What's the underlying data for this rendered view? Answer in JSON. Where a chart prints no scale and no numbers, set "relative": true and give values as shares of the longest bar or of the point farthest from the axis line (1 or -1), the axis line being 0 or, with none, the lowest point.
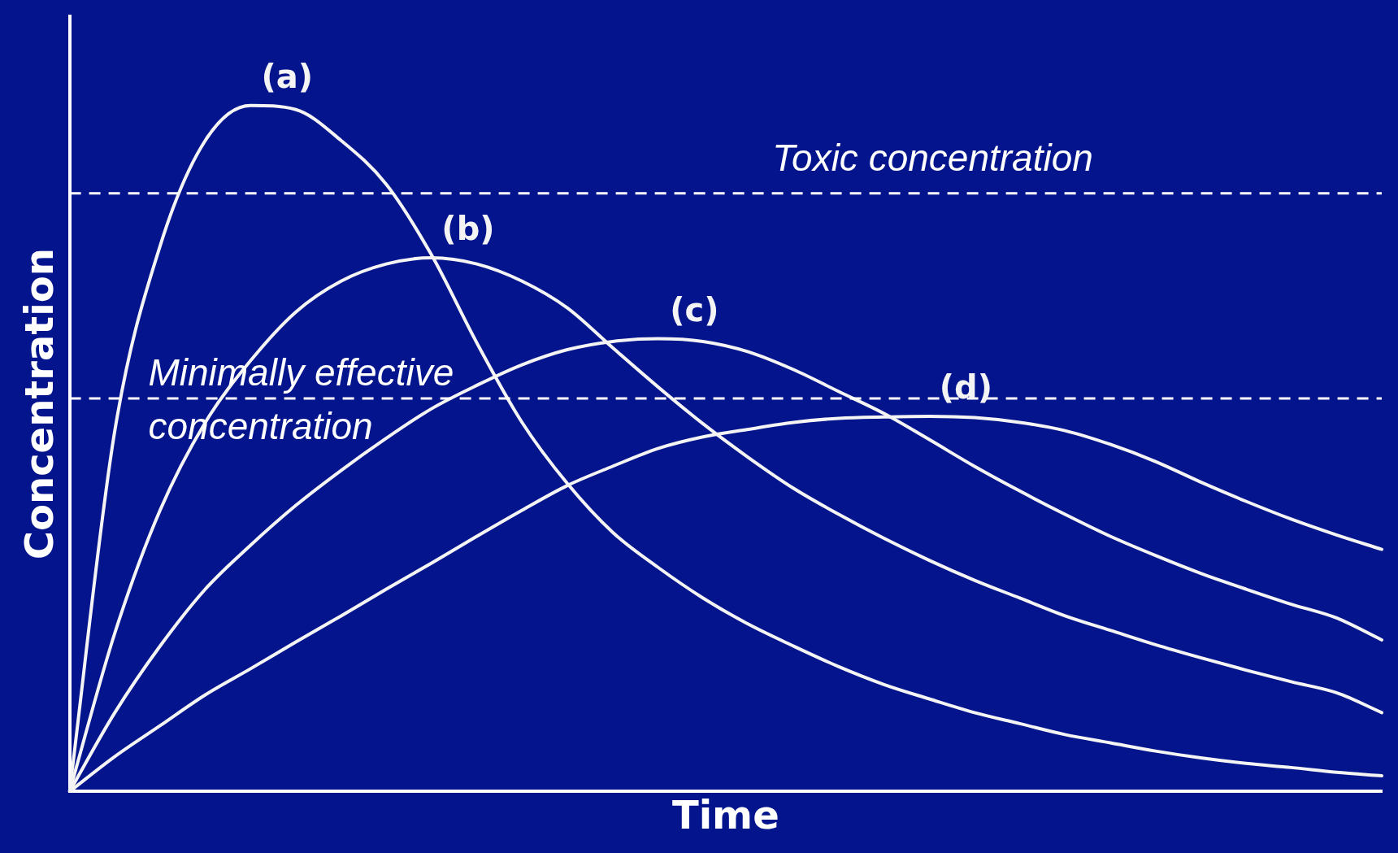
{
  "chart_data": {
    "type": "line",
    "relative": true,
    "xlabel": "Time",
    "ylabel": "Concentration",
    "legend": false,
    "grid": false,
    "marker": "none",
    "line_style": "solid",
    "categories": [
      null,
      null,
      null,
      null,
      null,
      null,
      null,
      null,
      null,
      null,
      null,
      null,
      null,
      null,
      null,
      null,
      null,
      null,
      null,
      null,
      null,
      null,
      null,
      null,
      null,
      null,
      null,
      null,
      null,
      null
    ],
    "series": [
      {
        "name": "(a)",
        "color": "#f4f4f4",
        "values": [
          0,
          0.526,
          0.795,
          0.949,
          1,
          0.994,
          0.949,
          0.885,
          0.782,
          0.654,
          0.538,
          0.449,
          0.378,
          0.327,
          0.282,
          0.244,
          0.212,
          0.182,
          0.156,
          0.135,
          0.115,
          0.099,
          0.083,
          0.071,
          0.059,
          0.049,
          0.041,
          0.035,
          0.028,
          0.023
        ]
      },
      {
        "name": "(b)",
        "color": "#f4f4f4",
        "values": [
          0,
          0.231,
          0.41,
          0.538,
          0.628,
          0.699,
          0.744,
          0.769,
          0.778,
          0.769,
          0.744,
          0.705,
          0.647,
          0.59,
          0.536,
          0.487,
          0.442,
          0.404,
          0.369,
          0.337,
          0.308,
          0.282,
          0.256,
          0.235,
          0.214,
          0.195,
          0.177,
          0.16,
          0.144,
          0.115
        ]
      },
      {
        "name": "(c)",
        "color": "#f4f4f4",
        "values": [
          0,
          0.115,
          0.212,
          0.295,
          0.359,
          0.417,
          0.468,
          0.515,
          0.558,
          0.592,
          0.622,
          0.644,
          0.656,
          0.66,
          0.656,
          0.641,
          0.615,
          0.583,
          0.551,
          0.513,
          0.474,
          0.438,
          0.404,
          0.372,
          0.344,
          0.318,
          0.295,
          0.273,
          0.253,
          0.221
        ]
      },
      {
        "name": "(d)",
        "color": "#f4f4f4",
        "values": [
          0,
          0.051,
          0.096,
          0.141,
          0.179,
          0.218,
          0.256,
          0.295,
          0.333,
          0.372,
          0.41,
          0.446,
          0.474,
          0.5,
          0.517,
          0.528,
          0.538,
          0.544,
          0.546,
          0.547,
          0.545,
          0.538,
          0.526,
          0.506,
          0.481,
          0.451,
          0.423,
          0.397,
          0.374,
          0.353
        ]
      }
    ],
    "ref_lines": [
      {
        "axis": "y",
        "value": 0.872,
        "label": "Toxic concentration",
        "color": "#ffffff",
        "line_style": "dashed"
      },
      {
        "axis": "y",
        "value": 0.573,
        "label": "Minimally effective concentration",
        "color": "#ffffff",
        "line_style": "dashed"
      }
    ]
  }
}
